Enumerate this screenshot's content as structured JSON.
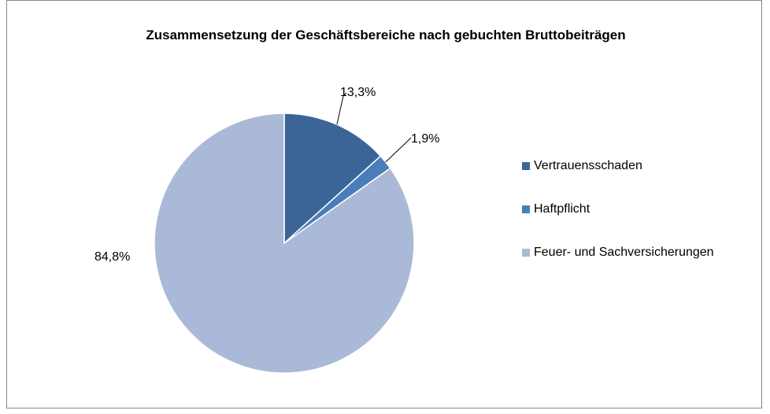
{
  "chart_data": {
    "type": "pie",
    "title": "Zusammensetzung der Geschäftsbereiche nach gebuchten Bruttobeiträgen",
    "categories": [
      "Vertrauensschaden",
      "Haftpflicht",
      "Feuer- und Sachversicherungen"
    ],
    "values": [
      13.3,
      1.9,
      84.8
    ],
    "value_labels": [
      "13,3%",
      "1,9%",
      "84,8%"
    ],
    "colors": [
      "#3c6597",
      "#4a7ebb",
      "#aab9d7"
    ],
    "legend": "right"
  }
}
